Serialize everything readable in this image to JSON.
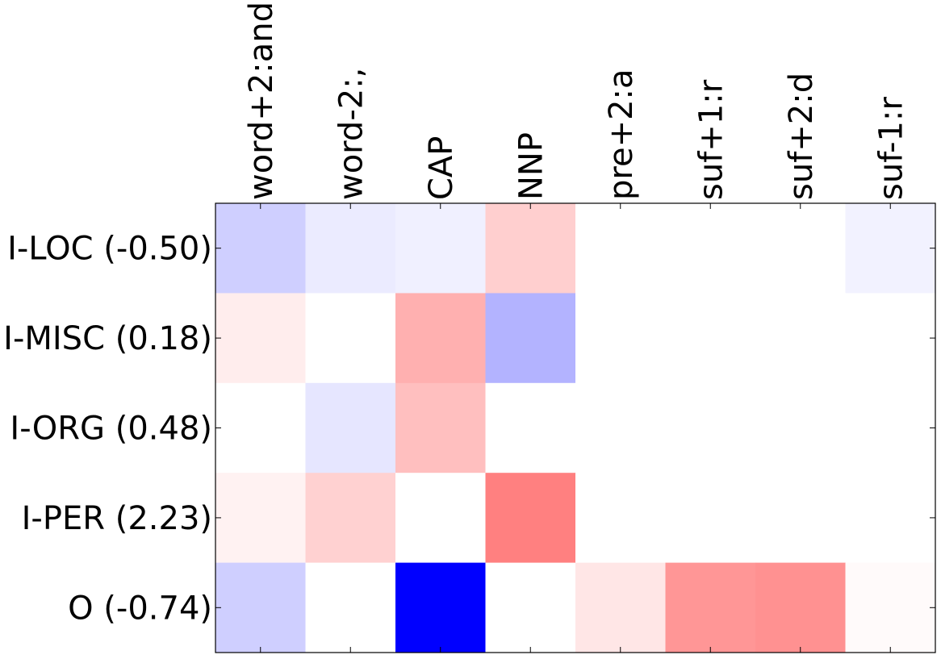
{
  "chart_data": {
    "type": "heatmap",
    "columns": [
      "word+2:and",
      "word-2:,",
      "CAP",
      "NNP",
      "pre+2:a",
      "suf+1:r",
      "suf+2:d",
      "suf-1:r"
    ],
    "rows": [
      "I-LOC (-0.50)",
      "I-MISC (0.18)",
      "I-ORG (0.48)",
      "I-PER (2.23)",
      "O (-0.74)"
    ],
    "values": [
      [
        -0.19,
        -0.08,
        -0.06,
        0.19,
        0.0,
        0.0,
        0.0,
        -0.05
      ],
      [
        0.07,
        0.0,
        0.31,
        -0.3,
        0.0,
        0.0,
        0.0,
        0.0
      ],
      [
        0.0,
        -0.1,
        0.25,
        0.0,
        0.0,
        0.0,
        0.0,
        0.0
      ],
      [
        0.05,
        0.18,
        0.0,
        0.5,
        0.0,
        0.0,
        0.0,
        0.0
      ],
      [
        -0.19,
        0.0,
        -1.0,
        0.0,
        0.1,
        0.41,
        0.43,
        0.02
      ]
    ],
    "color_range": [
      -1,
      1
    ],
    "colormap": "bwr",
    "negative_color": "#0000ff",
    "positive_color": "#ff0000",
    "neutral_color": "#ffffff",
    "grid": false,
    "legend": "none"
  }
}
